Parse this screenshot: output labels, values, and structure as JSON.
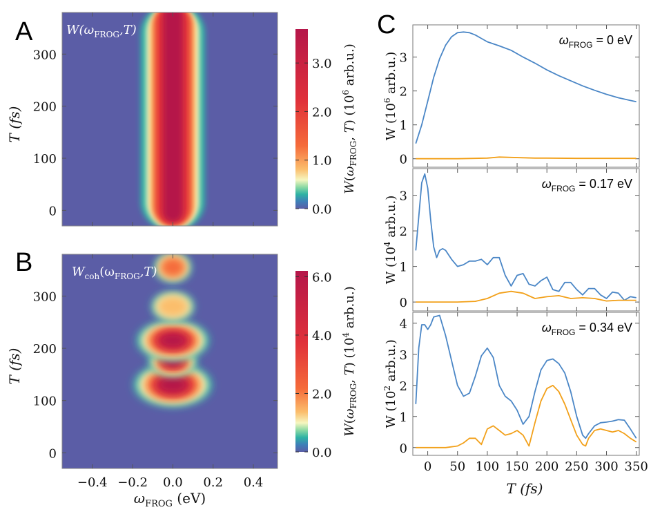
{
  "panel_letters": [
    "A",
    "B",
    "C"
  ],
  "colors": {
    "background": "#5B5DA6",
    "line_total": "#4A86C6",
    "line_coh": "#F2A019",
    "colormap": [
      "#5B5DA6",
      "#3E7FB8",
      "#2FB3A4",
      "#8CD9A4",
      "#F6F6C0",
      "#FBBE6C",
      "#F56B3A",
      "#E0313A",
      "#B5164A"
    ]
  },
  "chart_data": [
    {
      "id": "A",
      "type": "heatmap",
      "overlay_label": {
        "base": "W(ω",
        "sub": "FROG",
        "tail": ",T)"
      },
      "xlabel": {
        "base": "ω",
        "sub": "FROG",
        "tail": " (eV)"
      },
      "ylabel": "T (fs)",
      "xlim": [
        -0.55,
        0.52
      ],
      "ylim": [
        -30,
        380
      ],
      "xticks": [
        "−0.4",
        "−0.2",
        "0.0",
        "0.2",
        "0.4"
      ],
      "xtick_values": [
        -0.4,
        -0.2,
        0.0,
        0.2,
        0.4
      ],
      "yticks": [
        "0",
        "100",
        "200",
        "300"
      ],
      "ytick_values": [
        0,
        100,
        200,
        300
      ],
      "colorbar": {
        "label": "W(ωFROG, T) (10^6 arb.u.)",
        "ticks": [
          "0.0",
          "1.0",
          "2.0",
          "3.0"
        ],
        "tick_values": [
          0,
          1,
          2,
          3
        ],
        "range": [
          0,
          3.7
        ]
      },
      "features": {
        "center_x": 0.0,
        "width_x": 0.08,
        "start_T": -15,
        "peak_value": 3.7
      }
    },
    {
      "id": "B",
      "type": "heatmap",
      "overlay_label": {
        "base": "W",
        "base_sub": "coh",
        "mid": "(ω",
        "sub": "FROG",
        "tail": ",T)"
      },
      "xlabel": {
        "base": "ω",
        "sub": "FROG",
        "tail": " (eV)"
      },
      "ylabel": "T (fs)",
      "xlim": [
        -0.55,
        0.52
      ],
      "ylim": [
        -30,
        380
      ],
      "xticks": [
        "−0.4",
        "−0.2",
        "0.0",
        "0.2",
        "0.4"
      ],
      "xtick_values": [
        -0.4,
        -0.2,
        0.0,
        0.2,
        0.4
      ],
      "yticks": [
        "0",
        "100",
        "200",
        "300"
      ],
      "ytick_values": [
        0,
        100,
        200,
        300
      ],
      "colorbar": {
        "label": "W(ωFROG, T) (10^4 arb.u.)",
        "ticks": [
          "0.0",
          "2.0",
          "4.0",
          "6.0"
        ],
        "tick_values": [
          0,
          2,
          4,
          6
        ],
        "range": [
          0,
          6.2
        ]
      },
      "features": [
        {
          "T": 130,
          "width": 0.13,
          "value": 6.0
        },
        {
          "T": 175,
          "width": 0.08,
          "value": 5.0
        },
        {
          "T": 215,
          "width": 0.12,
          "value": 5.5
        },
        {
          "T": 280,
          "width": 0.07,
          "value": 1.6
        },
        {
          "T": 355,
          "width": 0.06,
          "value": 2.5
        }
      ]
    },
    {
      "id": "C",
      "type": "line",
      "xlabel": "T (fs)",
      "xlim": [
        -25,
        355
      ],
      "xticks": [
        "0",
        "50",
        "100",
        "150",
        "200",
        "250",
        "300",
        "350"
      ],
      "xtick_values": [
        0,
        50,
        100,
        150,
        200,
        250,
        300,
        350
      ],
      "subplots": [
        {
          "annotation": {
            "pre": "ω",
            "sub": "FROG",
            "post": " = 0 eV"
          },
          "ylabel": {
            "pre": "W (10",
            "sup": "6",
            "post": " arb.u.)"
          },
          "ylim": [
            -0.25,
            3.95
          ],
          "yticks": [
            "0",
            "1",
            "2",
            "3"
          ],
          "ytick_values": [
            0,
            1,
            2,
            3
          ],
          "series": [
            {
              "name": "W",
              "color": "#4A86C6",
              "x": [
                -20,
                -10,
                0,
                10,
                20,
                30,
                40,
                50,
                60,
                70,
                80,
                90,
                100,
                120,
                140,
                160,
                180,
                200,
                220,
                240,
                260,
                280,
                300,
                320,
                340,
                350
              ],
              "y": [
                0.45,
                1.0,
                1.7,
                2.4,
                2.95,
                3.35,
                3.6,
                3.72,
                3.74,
                3.72,
                3.65,
                3.55,
                3.45,
                3.33,
                3.2,
                3.0,
                2.82,
                2.62,
                2.45,
                2.3,
                2.15,
                2.02,
                1.9,
                1.8,
                1.72,
                1.68
              ]
            },
            {
              "name": "W_coh",
              "color": "#F2A019",
              "x": [
                -20,
                0,
                50,
                100,
                120,
                140,
                160,
                180,
                200,
                250,
                300,
                350
              ],
              "y": [
                0.0,
                0.0,
                0.0,
                0.02,
                0.05,
                0.04,
                0.03,
                0.02,
                0.02,
                0.01,
                0.01,
                0.01
              ]
            }
          ]
        },
        {
          "annotation": {
            "pre": "ω",
            "sub": "FROG",
            "post": " = 0.17 eV"
          },
          "ylabel": {
            "pre": "W (10",
            "sup": "4",
            "post": " arb.u.)"
          },
          "ylim": [
            -0.25,
            3.75
          ],
          "yticks": [
            "0",
            "1",
            "2",
            "3"
          ],
          "ytick_values": [
            0,
            1,
            2,
            3
          ],
          "series": [
            {
              "name": "W",
              "color": "#4A86C6",
              "x": [
                -20,
                -15,
                -10,
                -5,
                0,
                5,
                10,
                15,
                20,
                25,
                30,
                40,
                50,
                60,
                70,
                80,
                90,
                100,
                110,
                120,
                130,
                140,
                150,
                160,
                170,
                180,
                190,
                200,
                210,
                220,
                230,
                240,
                250,
                260,
                270,
                280,
                290,
                300,
                310,
                320,
                330,
                340,
                350
              ],
              "y": [
                1.45,
                2.4,
                3.35,
                3.6,
                3.2,
                2.3,
                1.55,
                1.25,
                1.45,
                1.5,
                1.45,
                1.2,
                1.0,
                1.05,
                1.15,
                1.15,
                1.2,
                1.05,
                1.25,
                1.25,
                0.75,
                0.45,
                0.75,
                0.8,
                0.5,
                0.45,
                0.6,
                0.7,
                0.35,
                0.3,
                0.55,
                0.55,
                0.35,
                0.2,
                0.38,
                0.38,
                0.2,
                0.1,
                0.28,
                0.25,
                0.05,
                0.15,
                0.12
              ]
            },
            {
              "name": "W_coh",
              "color": "#F2A019",
              "x": [
                -20,
                0,
                50,
                80,
                100,
                120,
                140,
                160,
                180,
                200,
                220,
                240,
                260,
                280,
                300,
                320,
                340,
                350
              ],
              "y": [
                0.0,
                0.0,
                0.0,
                0.02,
                0.1,
                0.25,
                0.3,
                0.25,
                0.1,
                0.15,
                0.18,
                0.1,
                0.12,
                0.1,
                0.03,
                0.05,
                0.05,
                0.05
              ]
            }
          ]
        },
        {
          "annotation": {
            "pre": "ω",
            "sub": "FROG",
            "post": " = 0.34 eV"
          },
          "ylabel": {
            "pre": "W (10",
            "sup": "2",
            "post": " arb.u.)"
          },
          "ylim": [
            -0.25,
            4.35
          ],
          "yticks": [
            "0",
            "1",
            "2",
            "3",
            "4"
          ],
          "ytick_values": [
            0,
            1,
            2,
            3,
            4
          ],
          "series": [
            {
              "name": "W",
              "color": "#4A86C6",
              "x": [
                -20,
                -15,
                -10,
                -5,
                0,
                5,
                10,
                20,
                30,
                40,
                50,
                60,
                70,
                80,
                90,
                100,
                110,
                120,
                130,
                140,
                150,
                160,
                170,
                180,
                190,
                200,
                210,
                220,
                230,
                240,
                250,
                260,
                265,
                270,
                280,
                290,
                300,
                310,
                320,
                330,
                340,
                350
              ],
              "y": [
                1.4,
                3.2,
                3.95,
                3.95,
                3.8,
                3.95,
                4.2,
                4.25,
                3.6,
                2.8,
                2.0,
                1.65,
                1.75,
                2.3,
                2.95,
                3.2,
                2.9,
                2.0,
                1.65,
                1.5,
                1.2,
                0.75,
                1.0,
                1.8,
                2.5,
                2.8,
                2.85,
                2.7,
                2.4,
                1.8,
                1.0,
                0.4,
                0.3,
                0.45,
                0.7,
                0.8,
                0.82,
                0.85,
                0.9,
                0.88,
                0.6,
                0.3
              ]
            },
            {
              "name": "W_coh",
              "color": "#F2A019",
              "x": [
                -20,
                0,
                30,
                50,
                60,
                70,
                80,
                90,
                100,
                110,
                120,
                130,
                140,
                150,
                160,
                170,
                180,
                190,
                200,
                210,
                220,
                230,
                240,
                250,
                260,
                265,
                270,
                280,
                290,
                300,
                310,
                320,
                330,
                340,
                350
              ],
              "y": [
                0.0,
                0.0,
                0.0,
                0.05,
                0.15,
                0.3,
                0.3,
                0.1,
                0.6,
                0.7,
                0.55,
                0.4,
                0.45,
                0.55,
                0.4,
                0.05,
                0.8,
                1.5,
                1.9,
                2.0,
                1.8,
                1.4,
                0.9,
                0.4,
                0.1,
                0.05,
                0.3,
                0.55,
                0.6,
                0.55,
                0.5,
                0.55,
                0.45,
                0.3,
                0.18
              ]
            }
          ]
        }
      ]
    }
  ]
}
